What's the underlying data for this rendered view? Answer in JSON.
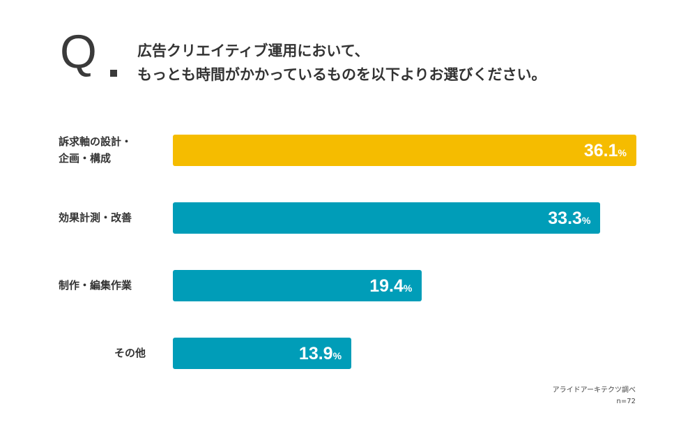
{
  "question": {
    "mark": "Q",
    "line1": "広告クリエイティブ運用において、",
    "line2": "もっとも時間がかかっているものを以下よりお選びください。"
  },
  "chart_data": {
    "type": "bar",
    "orientation": "horizontal",
    "categories": [
      "訴求軸の設計・企画・構成",
      "効果計測・改善",
      "制作・編集作業",
      "その他"
    ],
    "category_lines": [
      [
        "訴求軸の設計・",
        "企画・構成"
      ],
      [
        "効果計測・改善"
      ],
      [
        "制作・編集作業"
      ],
      [
        "その他"
      ]
    ],
    "values": [
      36.1,
      33.3,
      19.4,
      13.9
    ],
    "unit": "%",
    "colors": [
      "#F5BC00",
      "#009DB8",
      "#009DB8",
      "#009DB8"
    ],
    "grid": false
  },
  "footer": {
    "source": "アライドアーキテクツ調べ",
    "n": "n=72"
  }
}
